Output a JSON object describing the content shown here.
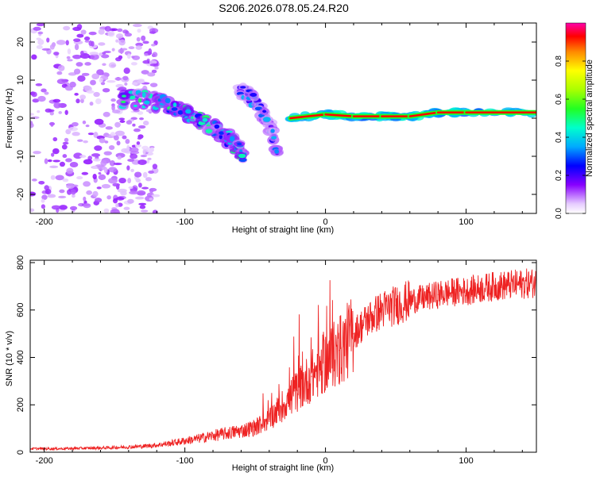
{
  "figure_title": "S206.2026.078.05.24.R20",
  "colorbar": {
    "label": "Normalized spectral amplitude",
    "ticks": [
      0.0,
      0.2,
      0.4,
      0.6,
      0.8
    ],
    "tick_labels": [
      "0.0",
      "0.2",
      "0.4",
      "0.6",
      "0.8"
    ],
    "range": [
      0,
      1
    ]
  },
  "chart_data": [
    {
      "type": "heatmap",
      "name": "spectrogram",
      "title": "",
      "xlabel": "Height of straight line (km)",
      "ylabel": "Frequency (Hz)",
      "xlim": [
        -210,
        150
      ],
      "ylim": [
        -25,
        25
      ],
      "xticks": [
        -200,
        -100,
        0,
        100
      ],
      "xtick_labels": [
        "-200",
        "-100",
        "0",
        "100"
      ],
      "yticks": [
        -20,
        -10,
        0,
        10,
        20
      ],
      "ytick_labels": [
        "-20",
        "-10",
        "0",
        "10",
        "20"
      ],
      "features": [
        {
          "name": "noise-field",
          "x_range": [
            -210,
            -120
          ],
          "y_range": [
            -25,
            25
          ],
          "amplitude": 0.08
        },
        {
          "name": "main-trace",
          "points": [
            [
              -145,
              5
            ],
            [
              -130,
              5
            ],
            [
              -118,
              4
            ],
            [
              -108,
              3
            ],
            [
              -98,
              1
            ],
            [
              -88,
              -1
            ],
            [
              -78,
              -3
            ],
            [
              -70,
              -5
            ],
            [
              -62,
              -8
            ],
            [
              -58,
              -11
            ]
          ],
          "amplitude": 0.35
        },
        {
          "name": "second-trace",
          "points": [
            [
              -62,
              8
            ],
            [
              -55,
              6
            ],
            [
              -48,
              3
            ],
            [
              -42,
              0
            ],
            [
              -38,
              -4
            ],
            [
              -34,
              -8
            ]
          ],
          "amplitude": 0.25
        },
        {
          "name": "carrier-line",
          "points": [
            [
              -25,
              0
            ],
            [
              0,
              1
            ],
            [
              20,
              0.5
            ],
            [
              40,
              0.5
            ],
            [
              60,
              0.5
            ],
            [
              80,
              1.5
            ],
            [
              100,
              1.5
            ],
            [
              150,
              1.5
            ]
          ],
          "amplitude": 0.95
        }
      ]
    },
    {
      "type": "line",
      "name": "snr",
      "title": "",
      "xlabel": "Height of straight line (km)",
      "ylabel": "SNR (10 * v/v)",
      "xlim": [
        -210,
        150
      ],
      "ylim": [
        0,
        810
      ],
      "xticks": [
        -200,
        -100,
        0,
        100
      ],
      "xtick_labels": [
        "-200",
        "-100",
        "0",
        "100"
      ],
      "yticks": [
        0,
        200,
        400,
        600,
        800
      ],
      "ytick_labels": [
        "0",
        "200",
        "400",
        "600",
        "800"
      ],
      "series": [
        {
          "name": "SNR",
          "color": "#ee2222",
          "x": [
            -210,
            -200,
            -190,
            -180,
            -170,
            -160,
            -150,
            -140,
            -130,
            -120,
            -110,
            -100,
            -90,
            -80,
            -70,
            -60,
            -50,
            -40,
            -30,
            -20,
            -10,
            0,
            10,
            20,
            30,
            40,
            50,
            60,
            70,
            80,
            90,
            100,
            110,
            120,
            130,
            140,
            150
          ],
          "values": [
            15,
            15,
            15,
            16,
            17,
            18,
            20,
            22,
            25,
            30,
            38,
            48,
            58,
            70,
            80,
            90,
            105,
            140,
            200,
            260,
            320,
            380,
            430,
            500,
            560,
            600,
            620,
            640,
            650,
            665,
            675,
            680,
            690,
            700,
            705,
            710,
            715
          ]
        }
      ]
    }
  ]
}
